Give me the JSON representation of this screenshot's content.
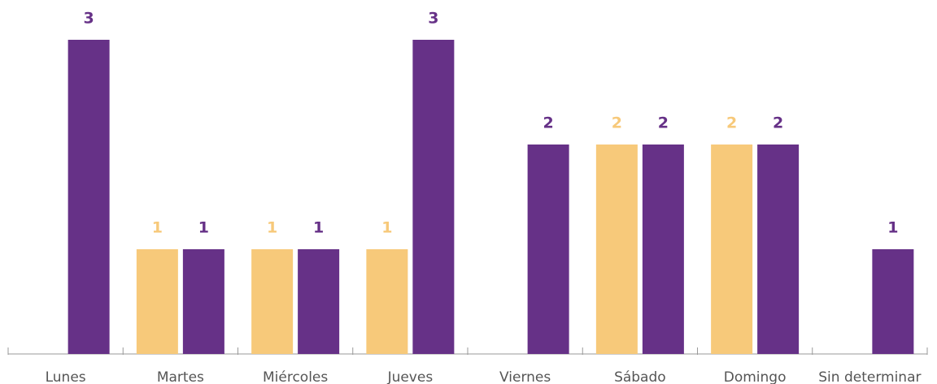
{
  "chart_data": {
    "type": "bar",
    "categories": [
      "Lunes",
      "Martes",
      "Miércoles",
      "Jueves",
      "Viernes",
      "Sábado",
      "Domingo",
      "Sin determinar"
    ],
    "series": [
      {
        "color": "#f7c97a",
        "values": [
          null,
          1,
          1,
          1,
          null,
          2,
          2,
          null
        ]
      },
      {
        "color": "#663187",
        "values": [
          3,
          1,
          1,
          3,
          2,
          2,
          2,
          1
        ]
      }
    ],
    "ylim": [
      0,
      3
    ]
  }
}
